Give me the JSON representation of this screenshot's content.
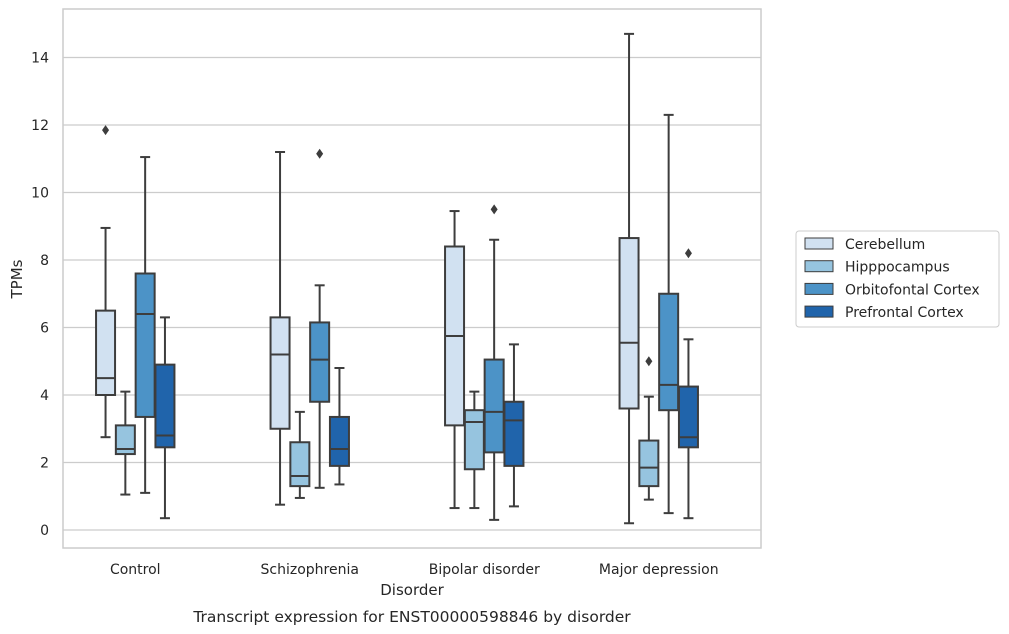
{
  "chart_data": {
    "type": "box",
    "xlabel": "Disorder",
    "ylabel": "TPMs",
    "caption": "Transcript expression for ENST00000598846 by disorder",
    "ylim": [
      -0.5,
      15.5
    ],
    "yticks": [
      0,
      2,
      4,
      6,
      8,
      10,
      12,
      14
    ],
    "grid": "horizontal",
    "legend_position": "right",
    "categories": [
      "Control",
      "Schizophrenia",
      "Bipolar disorder",
      "Major depression"
    ],
    "series": [
      {
        "name": "Cerebellum",
        "color": "#d1e1f1",
        "boxes": [
          {
            "whislo": 2.75,
            "q1": 4.0,
            "med": 4.5,
            "q3": 6.5,
            "whishi": 8.95,
            "fliers": [
              11.85
            ]
          },
          {
            "whislo": 0.75,
            "q1": 3.0,
            "med": 5.2,
            "q3": 6.3,
            "whishi": 11.2,
            "fliers": []
          },
          {
            "whislo": 0.65,
            "q1": 3.1,
            "med": 5.75,
            "q3": 8.4,
            "whishi": 9.45,
            "fliers": []
          },
          {
            "whislo": 0.2,
            "q1": 3.6,
            "med": 5.55,
            "q3": 8.65,
            "whishi": 14.7,
            "fliers": []
          }
        ]
      },
      {
        "name": "Hipppocampus",
        "color": "#96c4df",
        "boxes": [
          {
            "whislo": 1.05,
            "q1": 2.25,
            "med": 2.4,
            "q3": 3.1,
            "whishi": 4.1,
            "fliers": []
          },
          {
            "whislo": 0.95,
            "q1": 1.3,
            "med": 1.6,
            "q3": 2.6,
            "whishi": 3.5,
            "fliers": []
          },
          {
            "whislo": 0.65,
            "q1": 1.8,
            "med": 3.2,
            "q3": 3.55,
            "whishi": 4.1,
            "fliers": []
          },
          {
            "whislo": 0.9,
            "q1": 1.3,
            "med": 1.85,
            "q3": 2.65,
            "whishi": 3.95,
            "fliers": [
              5.0
            ]
          }
        ]
      },
      {
        "name": "Orbitofontal Cortex",
        "color": "#4c93c7",
        "boxes": [
          {
            "whislo": 1.1,
            "q1": 3.35,
            "med": 6.4,
            "q3": 7.6,
            "whishi": 11.05,
            "fliers": []
          },
          {
            "whislo": 1.25,
            "q1": 3.8,
            "med": 5.05,
            "q3": 6.15,
            "whishi": 7.25,
            "fliers": [
              11.15
            ]
          },
          {
            "whislo": 0.3,
            "q1": 2.3,
            "med": 3.5,
            "q3": 5.05,
            "whishi": 8.6,
            "fliers": [
              9.5
            ]
          },
          {
            "whislo": 0.5,
            "q1": 3.55,
            "med": 4.3,
            "q3": 7.0,
            "whishi": 12.3,
            "fliers": []
          }
        ]
      },
      {
        "name": "Prefrontal Cortex",
        "color": "#2064ab",
        "boxes": [
          {
            "whislo": 0.35,
            "q1": 2.45,
            "med": 2.8,
            "q3": 4.9,
            "whishi": 6.3,
            "fliers": []
          },
          {
            "whislo": 1.35,
            "q1": 1.9,
            "med": 2.4,
            "q3": 3.35,
            "whishi": 4.8,
            "fliers": []
          },
          {
            "whislo": 0.7,
            "q1": 1.9,
            "med": 3.25,
            "q3": 3.8,
            "whishi": 5.5,
            "fliers": []
          },
          {
            "whislo": 0.35,
            "q1": 2.45,
            "med": 2.75,
            "q3": 4.25,
            "whishi": 5.65,
            "fliers": [
              8.2
            ]
          }
        ]
      }
    ]
  }
}
